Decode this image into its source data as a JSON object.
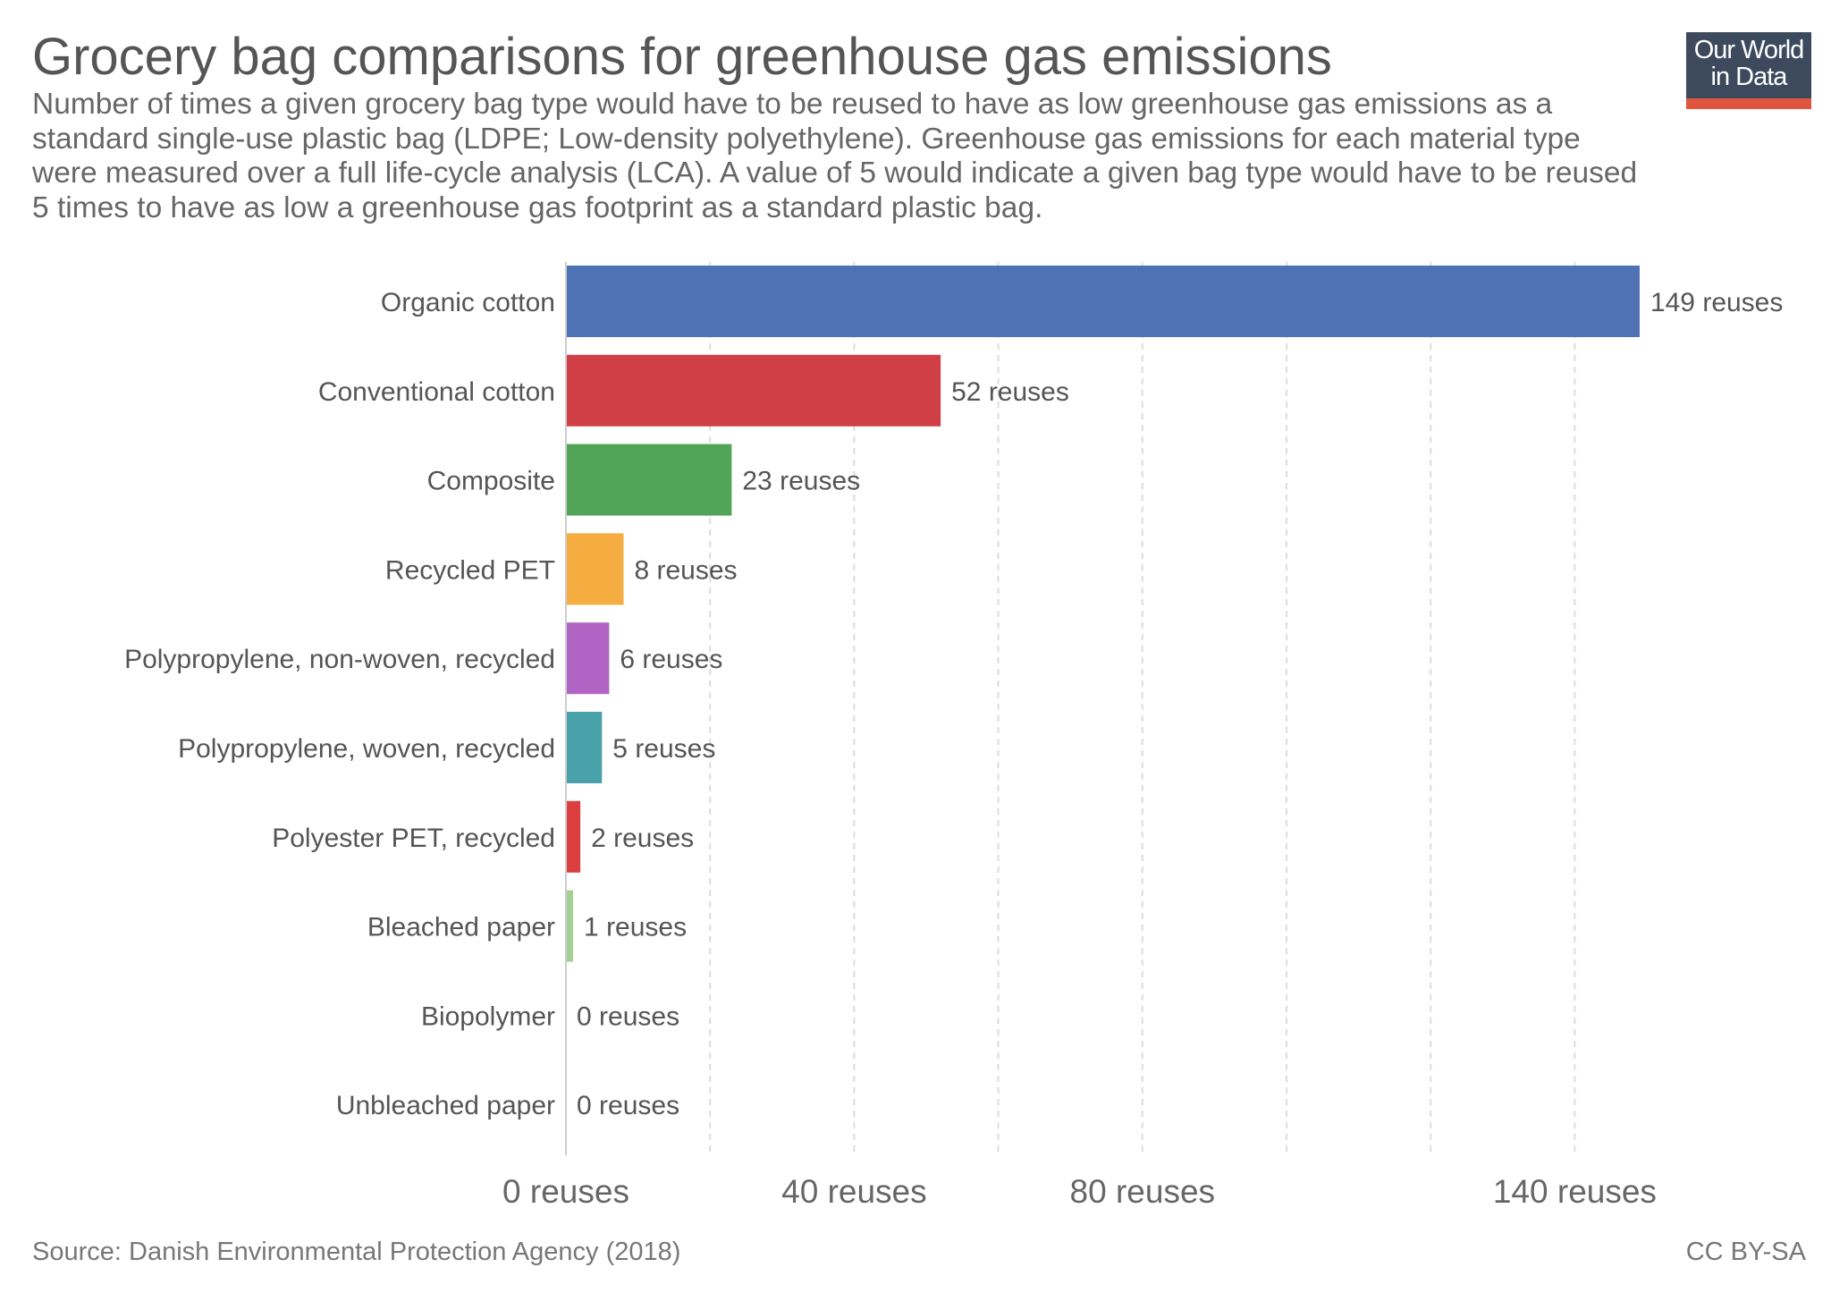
{
  "header": {
    "title": "Grocery bag comparisons for greenhouse gas emissions",
    "subtitle": "Number of times a given grocery bag type would have to be reused to have as low greenhouse gas emissions as a standard single-use plastic bag (LDPE; Low-density polyethylene). Greenhouse gas emissions for each material type were measured over a full life-cycle analysis (LCA). A value of 5 would indicate a given bag type would have to be reused 5 times to have as low a greenhouse gas footprint as a standard plastic bag."
  },
  "logo": {
    "line1": "Our World",
    "line2": "in Data",
    "background": "#3d4a5e",
    "accent": "#e0553f"
  },
  "footer": {
    "source": "Source: Danish Environmental Protection Agency (2018)",
    "license": "CC BY-SA"
  },
  "chart_data": {
    "type": "bar",
    "orientation": "horizontal",
    "title": "Grocery bag comparisons for greenhouse gas emissions",
    "xlabel": "",
    "ylabel": "",
    "unit_suffix": " reuses",
    "xlim": [
      0,
      160
    ],
    "grid": true,
    "gridlines": [
      20,
      40,
      60,
      80,
      100,
      120,
      140
    ],
    "ticks": [
      {
        "value": 0,
        "label": "0 reuses"
      },
      {
        "value": 40,
        "label": "40 reuses"
      },
      {
        "value": 80,
        "label": "80 reuses"
      },
      {
        "value": 140,
        "label": "140 reuses"
      }
    ],
    "categories": [
      "Organic cotton",
      "Conventional cotton",
      "Composite",
      "Recycled PET",
      "Polypropylene, non-woven, recycled",
      "Polypropylene, woven, recycled",
      "Polyester PET, recycled",
      "Bleached paper",
      "Biopolymer",
      "Unbleached paper"
    ],
    "values": [
      149,
      52,
      23,
      8,
      6,
      5,
      2,
      1,
      0,
      0
    ],
    "value_labels": [
      "149 reuses",
      "52 reuses",
      "23 reuses",
      "8 reuses",
      "6 reuses",
      "5 reuses",
      "2 reuses",
      "1 reuses",
      "0 reuses",
      "0 reuses"
    ],
    "colors": [
      "#4f72b4",
      "#d03f45",
      "#52a557",
      "#f5ad41",
      "#b164c3",
      "#48a0a8",
      "#dc3f3f",
      "#a5d094",
      "#8a8a8a",
      "#8a8a8a"
    ]
  }
}
